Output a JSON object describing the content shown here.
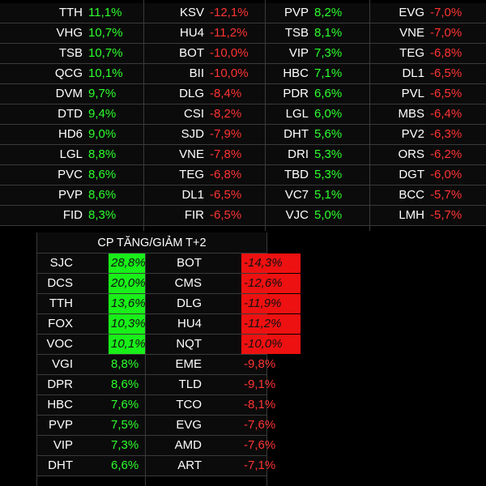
{
  "top_table": {
    "columns": [
      {
        "rows": [
          {
            "sym": "TTH",
            "val": "11,1%"
          },
          {
            "sym": "VHG",
            "val": "10,7%"
          },
          {
            "sym": "TSB",
            "val": "10,7%"
          },
          {
            "sym": "QCG",
            "val": "10,1%"
          },
          {
            "sym": "DVM",
            "val": "9,7%"
          },
          {
            "sym": "DTD",
            "val": "9,4%"
          },
          {
            "sym": "HD6",
            "val": "9,0%"
          },
          {
            "sym": "LGL",
            "val": "8,8%"
          },
          {
            "sym": "PVC",
            "val": "8,6%"
          },
          {
            "sym": "PVP",
            "val": "8,6%"
          },
          {
            "sym": "FID",
            "val": "8,3%"
          }
        ]
      },
      {
        "rows": [
          {
            "sym": "KSV",
            "val": "-12,1%"
          },
          {
            "sym": "HU4",
            "val": "-11,2%"
          },
          {
            "sym": "BOT",
            "val": "-10,0%"
          },
          {
            "sym": "BII",
            "val": "-10,0%"
          },
          {
            "sym": "DLG",
            "val": "-8,4%"
          },
          {
            "sym": "CSI",
            "val": "-8,2%"
          },
          {
            "sym": "SJD",
            "val": "-7,9%"
          },
          {
            "sym": "VNE",
            "val": "-7,8%"
          },
          {
            "sym": "TEG",
            "val": "-6,8%"
          },
          {
            "sym": "DL1",
            "val": "-6,5%"
          },
          {
            "sym": "FIR",
            "val": "-6,5%"
          }
        ]
      },
      {
        "rows": [
          {
            "sym": "PVP",
            "val": "8,2%"
          },
          {
            "sym": "TSB",
            "val": "8,1%"
          },
          {
            "sym": "VIP",
            "val": "7,3%"
          },
          {
            "sym": "HBC",
            "val": "7,1%"
          },
          {
            "sym": "PDR",
            "val": "6,6%"
          },
          {
            "sym": "LGL",
            "val": "6,0%"
          },
          {
            "sym": "DHT",
            "val": "5,6%"
          },
          {
            "sym": "DRI",
            "val": "5,3%"
          },
          {
            "sym": "TBD",
            "val": "5,3%"
          },
          {
            "sym": "VC7",
            "val": "5,1%"
          },
          {
            "sym": "VJC",
            "val": "5,0%"
          }
        ]
      },
      {
        "rows": [
          {
            "sym": "EVG",
            "val": "-7,0%"
          },
          {
            "sym": "VNE",
            "val": "-7,0%"
          },
          {
            "sym": "TEG",
            "val": "-6,8%"
          },
          {
            "sym": "DL1",
            "val": "-6,5%"
          },
          {
            "sym": "PVL",
            "val": "-6,5%"
          },
          {
            "sym": "MBS",
            "val": "-6,4%"
          },
          {
            "sym": "PV2",
            "val": "-6,3%"
          },
          {
            "sym": "ORS",
            "val": "-6,2%"
          },
          {
            "sym": "DGT",
            "val": "-6,0%"
          },
          {
            "sym": "BCC",
            "val": "-5,7%"
          },
          {
            "sym": "LMH",
            "val": "-5,7%"
          }
        ]
      }
    ]
  },
  "t2_table": {
    "title": "CP TĂNG/GIẢM T+2",
    "left": [
      {
        "sym": "SJC",
        "val": "28,8%"
      },
      {
        "sym": "DCS",
        "val": "20,0%"
      },
      {
        "sym": "TTH",
        "val": "13,6%"
      },
      {
        "sym": "FOX",
        "val": "10,3%"
      },
      {
        "sym": "VOC",
        "val": "10,1%"
      },
      {
        "sym": "VGI",
        "val": "8,8%"
      },
      {
        "sym": "DPR",
        "val": "8,6%"
      },
      {
        "sym": "HBC",
        "val": "7,6%"
      },
      {
        "sym": "PVP",
        "val": "7,5%"
      },
      {
        "sym": "VIP",
        "val": "7,3%"
      },
      {
        "sym": "DHT",
        "val": "6,6%"
      }
    ],
    "right": [
      {
        "sym": "BOT",
        "val": "-14,3%"
      },
      {
        "sym": "CMS",
        "val": "-12,6%"
      },
      {
        "sym": "DLG",
        "val": "-11,9%"
      },
      {
        "sym": "HU4",
        "val": "-11,2%"
      },
      {
        "sym": "NQT",
        "val": "-10,0%"
      },
      {
        "sym": "EME",
        "val": "-9,8%"
      },
      {
        "sym": "TLD",
        "val": "-9,1%"
      },
      {
        "sym": "TCO",
        "val": "-8,1%"
      },
      {
        "sym": "EVG",
        "val": "-7,6%"
      },
      {
        "sym": "AMD",
        "val": "-7,6%"
      },
      {
        "sym": "ART",
        "val": "-7,1%"
      }
    ]
  },
  "colors": {
    "up": "#2dff2d",
    "down": "#ff3333",
    "highlight_up": "#19ef19",
    "highlight_down": "#ee1111"
  }
}
